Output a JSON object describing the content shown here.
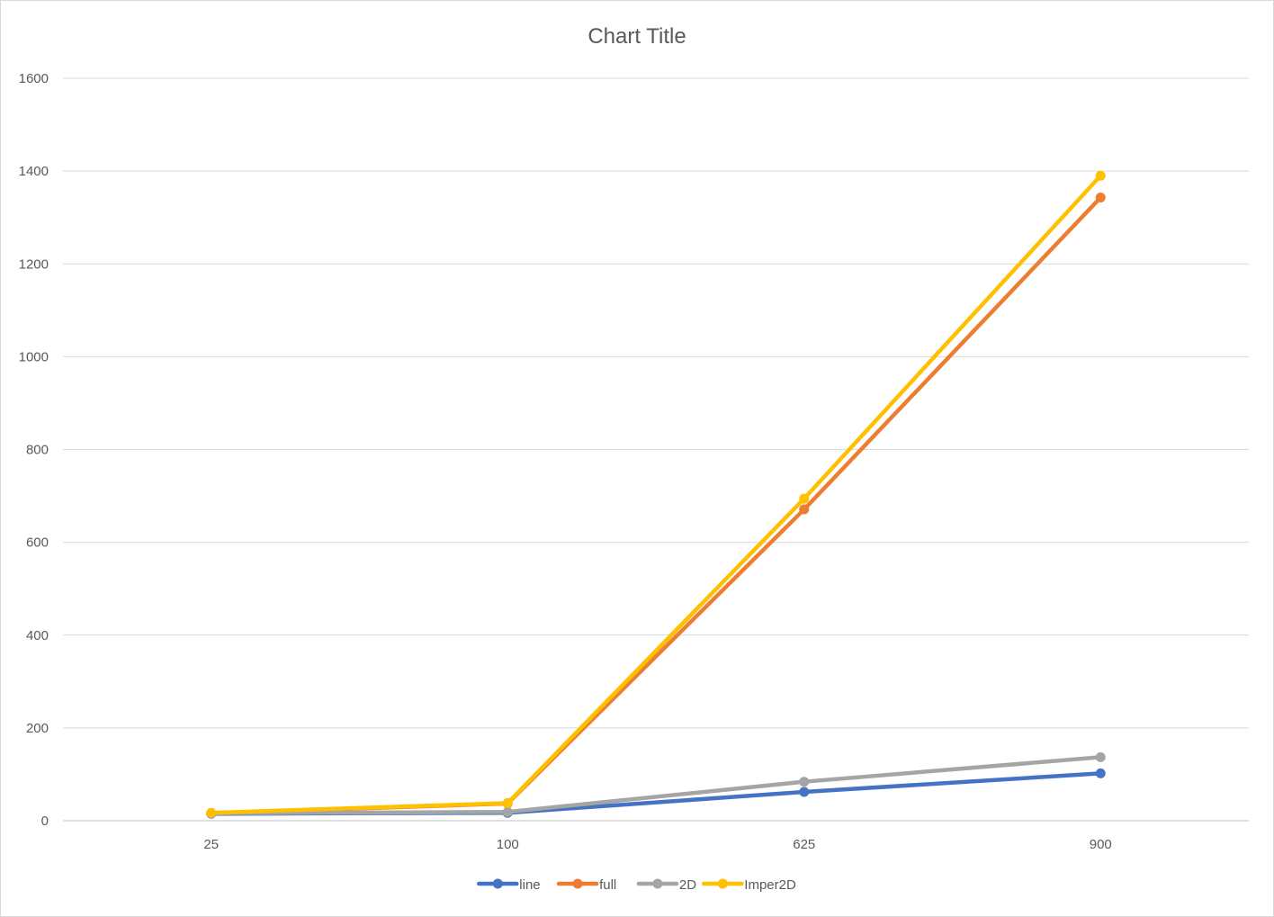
{
  "chart_data": {
    "type": "line",
    "title": "Chart Title",
    "xlabel": "",
    "ylabel": "",
    "categories": [
      "25",
      "100",
      "625",
      "900"
    ],
    "ylim": [
      0,
      1600
    ],
    "yticks": [
      0,
      200,
      400,
      600,
      800,
      1000,
      1200,
      1400,
      1600
    ],
    "grid": true,
    "legend_position": "bottom",
    "series": [
      {
        "name": "line",
        "color": "#4472C4",
        "values": [
          15,
          17,
          62,
          102
        ]
      },
      {
        "name": "full",
        "color": "#ED7D31",
        "values": [
          16,
          37,
          671,
          1343
        ]
      },
      {
        "name": "2D",
        "color": "#A5A5A5",
        "values": [
          16,
          19,
          84,
          137
        ]
      },
      {
        "name": "Imper2D",
        "color": "#FFC000",
        "values": [
          17,
          38,
          694,
          1390
        ]
      }
    ]
  }
}
